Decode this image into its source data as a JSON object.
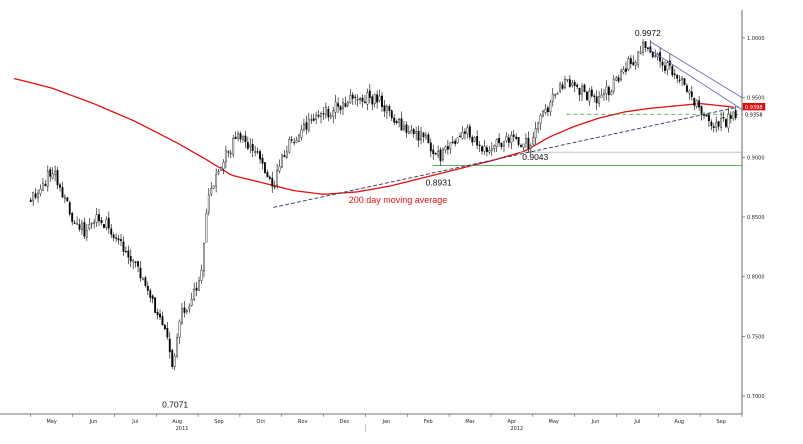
{
  "chart_data": {
    "type": "candlestick",
    "title": "",
    "xlabel": "",
    "ylabel": "",
    "ylim": [
      0.685,
      1.02
    ],
    "y_ticks": [
      {
        "value": 0.7,
        "label": "0.7000"
      },
      {
        "value": 0.75,
        "label": "0.7500"
      },
      {
        "value": 0.8,
        "label": "0.8000"
      },
      {
        "value": 0.85,
        "label": "0.8500"
      },
      {
        "value": 0.9,
        "label": "0.9000"
      },
      {
        "value": 0.95,
        "label": "0.9500"
      },
      {
        "value": 1.0,
        "label": "1.0000"
      }
    ],
    "x_month_labels": [
      {
        "label": "May",
        "t": 0.5
      },
      {
        "label": "Jun",
        "t": 1.5
      },
      {
        "label": "Jul",
        "t": 2.5
      },
      {
        "label": "Aug",
        "t": 3.5
      },
      {
        "label": "Sep",
        "t": 4.5
      },
      {
        "label": "Oct",
        "t": 5.5
      },
      {
        "label": "Nov",
        "t": 6.5
      },
      {
        "label": "Dec",
        "t": 7.5
      },
      {
        "label": "Jan",
        "t": 8.5
      },
      {
        "label": "Feb",
        "t": 9.5
      },
      {
        "label": "Mar",
        "t": 10.5
      },
      {
        "label": "Apr",
        "t": 11.5
      },
      {
        "label": "May",
        "t": 12.5
      },
      {
        "label": "Jun",
        "t": 13.5
      },
      {
        "label": "Jul",
        "t": 14.5
      },
      {
        "label": "Aug",
        "t": 15.5
      },
      {
        "label": "Sep",
        "t": 16.5
      }
    ],
    "x_year_labels": [
      {
        "label": "2011",
        "t": 4.0
      },
      {
        "label": "2012",
        "t": 12.0
      }
    ],
    "x_range": [
      -0.4,
      17.0
    ],
    "price_anchors": [
      [
        0.0,
        0.865
      ],
      [
        0.3,
        0.876
      ],
      [
        0.5,
        0.891
      ],
      [
        0.75,
        0.872
      ],
      [
        1.0,
        0.845
      ],
      [
        1.3,
        0.838
      ],
      [
        1.6,
        0.852
      ],
      [
        1.9,
        0.84
      ],
      [
        2.2,
        0.826
      ],
      [
        2.5,
        0.812
      ],
      [
        2.8,
        0.792
      ],
      [
        3.0,
        0.77
      ],
      [
        3.25,
        0.748
      ],
      [
        3.4,
        0.722
      ],
      [
        3.6,
        0.772
      ],
      [
        3.8,
        0.778
      ],
      [
        4.0,
        0.79
      ],
      [
        4.1,
        0.805
      ],
      [
        4.2,
        0.855
      ],
      [
        4.35,
        0.878
      ],
      [
        4.7,
        0.905
      ],
      [
        5.0,
        0.918
      ],
      [
        5.3,
        0.908
      ],
      [
        5.6,
        0.888
      ],
      [
        5.8,
        0.872
      ],
      [
        6.0,
        0.902
      ],
      [
        6.4,
        0.92
      ],
      [
        6.8,
        0.933
      ],
      [
        7.2,
        0.94
      ],
      [
        7.6,
        0.947
      ],
      [
        8.0,
        0.95
      ],
      [
        8.3,
        0.948
      ],
      [
        8.6,
        0.935
      ],
      [
        9.0,
        0.922
      ],
      [
        9.4,
        0.916
      ],
      [
        9.8,
        0.9
      ],
      [
        10.0,
        0.908
      ],
      [
        10.4,
        0.922
      ],
      [
        10.8,
        0.905
      ],
      [
        11.2,
        0.912
      ],
      [
        11.6,
        0.916
      ],
      [
        11.9,
        0.91
      ],
      [
        12.1,
        0.926
      ],
      [
        12.4,
        0.945
      ],
      [
        12.7,
        0.962
      ],
      [
        13.0,
        0.96
      ],
      [
        13.3,
        0.952
      ],
      [
        13.6,
        0.948
      ],
      [
        13.9,
        0.96
      ],
      [
        14.2,
        0.975
      ],
      [
        14.5,
        0.985
      ],
      [
        14.7,
        0.995
      ],
      [
        14.9,
        0.988
      ],
      [
        15.2,
        0.975
      ],
      [
        15.5,
        0.965
      ],
      [
        15.8,
        0.95
      ],
      [
        16.1,
        0.938
      ],
      [
        16.35,
        0.925
      ],
      [
        16.6,
        0.93
      ],
      [
        16.8,
        0.934
      ]
    ],
    "ma_anchors": [
      [
        -0.4,
        0.966
      ],
      [
        0.5,
        0.958
      ],
      [
        1.5,
        0.945
      ],
      [
        2.5,
        0.93
      ],
      [
        3.5,
        0.912
      ],
      [
        4.2,
        0.898
      ],
      [
        4.8,
        0.885
      ],
      [
        5.5,
        0.879
      ],
      [
        6.3,
        0.872
      ],
      [
        7.0,
        0.869
      ],
      [
        7.8,
        0.871
      ],
      [
        8.6,
        0.876
      ],
      [
        9.4,
        0.883
      ],
      [
        10.2,
        0.89
      ],
      [
        11.0,
        0.897
      ],
      [
        11.8,
        0.905
      ],
      [
        12.4,
        0.917
      ],
      [
        13.0,
        0.926
      ],
      [
        13.6,
        0.933
      ],
      [
        14.2,
        0.938
      ],
      [
        14.8,
        0.941
      ],
      [
        15.4,
        0.943
      ],
      [
        16.0,
        0.945
      ],
      [
        16.8,
        0.942
      ]
    ],
    "annotations": [
      {
        "text": "0.7071",
        "t": 3.45,
        "y": 0.7071,
        "position": "below"
      },
      {
        "text": "0.8931",
        "t": 9.75,
        "y": 0.8931,
        "position": "below"
      },
      {
        "text": "0.9043",
        "t": 11.7,
        "y": 0.9043,
        "position": "below-right"
      },
      {
        "text": "0.9972",
        "t": 14.75,
        "y": 0.9972,
        "position": "above"
      }
    ],
    "ma_label": {
      "text": "200 day moving average",
      "t": 7.6,
      "y": 0.865
    },
    "trendlines": [
      {
        "name": "support-dashed",
        "style": "dashed",
        "color": "#333366",
        "from": [
          5.8,
          0.858
        ],
        "to": [
          16.9,
          0.942
        ]
      },
      {
        "name": "resistance-upper",
        "style": "solid",
        "color": "#6a6abf",
        "from": [
          14.8,
          0.997
        ],
        "to": [
          17.0,
          0.95
        ]
      },
      {
        "name": "resistance-lower",
        "style": "solid",
        "color": "#6a6abf",
        "from": [
          14.8,
          0.99
        ],
        "to": [
          17.0,
          0.94
        ]
      }
    ],
    "horizontal_lines": [
      {
        "name": "green-dashed",
        "y": 0.936,
        "from": 12.8,
        "to": 17.0,
        "color": "#4cae4c",
        "style": "dashed"
      },
      {
        "name": "grey-line",
        "y": 0.9043,
        "from": 11.7,
        "to": 17.0,
        "color": "#b9b9b9",
        "style": "solid"
      },
      {
        "name": "green-solid",
        "y": 0.8931,
        "from": 9.6,
        "to": 17.0,
        "color": "#4cae4c",
        "style": "solid"
      }
    ],
    "price_badges": [
      {
        "text": "0.9398",
        "y": 0.942,
        "bg": "#e01010",
        "fg": "#ffffff"
      },
      {
        "text": "0.9358",
        "y": 0.9358,
        "bg": "#ffffff",
        "fg": "#000000"
      }
    ],
    "candle_count": 290,
    "candle_seed": 11,
    "colors": {
      "ma": "#e01010",
      "up_candle": "#ffffff",
      "down_candle": "#000000",
      "wick": "#000000",
      "axis": "#444444"
    },
    "grid": false
  }
}
